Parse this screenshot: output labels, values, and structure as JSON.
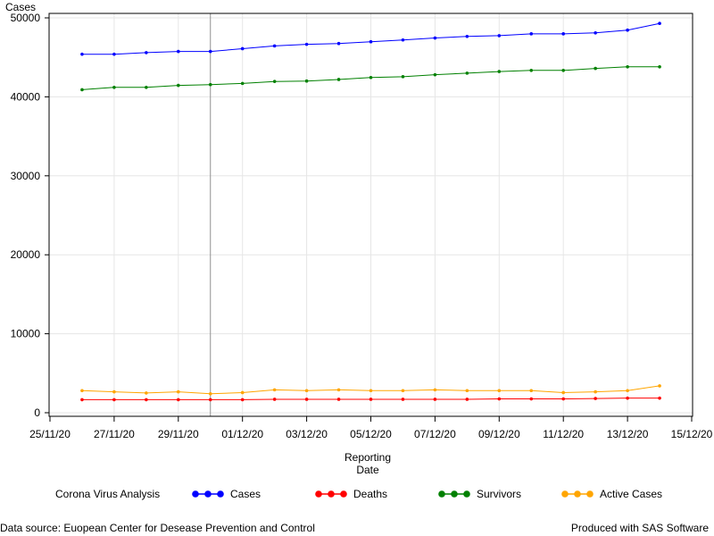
{
  "chart_data": {
    "type": "line",
    "title": "",
    "xlabel": [
      "Reporting",
      "Date"
    ],
    "ylabel": "Cases",
    "xlim": [
      "2020-11-25",
      "2020-12-15"
    ],
    "ylim": [
      0,
      50000
    ],
    "x_ticks": [
      "25/11/20",
      "27/11/20",
      "29/11/20",
      "01/12/20",
      "03/12/20",
      "05/12/20",
      "07/12/20",
      "09/12/20",
      "11/12/20",
      "13/12/20",
      "15/12/20"
    ],
    "x_tick_dates": [
      "2020-11-25",
      "2020-11-27",
      "2020-11-29",
      "2020-12-01",
      "2020-12-03",
      "2020-12-05",
      "2020-12-07",
      "2020-12-09",
      "2020-12-11",
      "2020-12-13",
      "2020-12-15"
    ],
    "y_ticks": [
      0,
      10000,
      20000,
      30000,
      40000,
      50000
    ],
    "y_tick_labels": [
      "0",
      "10000",
      "20000",
      "30000",
      "40000",
      "50000"
    ],
    "grid": true,
    "reference_line_x": "2020-11-30",
    "legend_position": "bottom",
    "legend_title": "Corona Virus Analysis",
    "x": [
      "2020-11-26",
      "2020-11-27",
      "2020-11-28",
      "2020-11-29",
      "2020-11-30",
      "2020-12-01",
      "2020-12-02",
      "2020-12-03",
      "2020-12-04",
      "2020-12-05",
      "2020-12-06",
      "2020-12-07",
      "2020-12-08",
      "2020-12-09",
      "2020-12-10",
      "2020-12-11",
      "2020-12-12",
      "2020-12-13",
      "2020-12-14"
    ],
    "series": [
      {
        "name": "Cases",
        "color": "#0000ff",
        "values": [
          45400,
          45400,
          45600,
          45750,
          45750,
          46100,
          46450,
          46650,
          46750,
          46980,
          47200,
          47450,
          47650,
          47750,
          47980,
          47980,
          48100,
          48450,
          49300
        ]
      },
      {
        "name": "Deaths",
        "color": "#ff0000",
        "values": [
          1650,
          1650,
          1650,
          1650,
          1650,
          1650,
          1700,
          1700,
          1700,
          1700,
          1700,
          1700,
          1700,
          1750,
          1750,
          1750,
          1800,
          1850,
          1850
        ]
      },
      {
        "name": "Survivors",
        "color": "#008000",
        "values": [
          40900,
          41200,
          41200,
          41450,
          41550,
          41700,
          41950,
          42000,
          42200,
          42450,
          42550,
          42800,
          43000,
          43200,
          43350,
          43350,
          43600,
          43800,
          43800
        ]
      },
      {
        "name": "Active Cases",
        "color": "#ffa500",
        "values": [
          2800,
          2650,
          2500,
          2650,
          2400,
          2550,
          2900,
          2800,
          2900,
          2800,
          2800,
          2900,
          2800,
          2800,
          2800,
          2550,
          2650,
          2800,
          3400
        ]
      }
    ]
  },
  "footer": {
    "left": "Data source: Euopean Center for Desease Prevention and Control",
    "right": "Produced with SAS Software"
  }
}
